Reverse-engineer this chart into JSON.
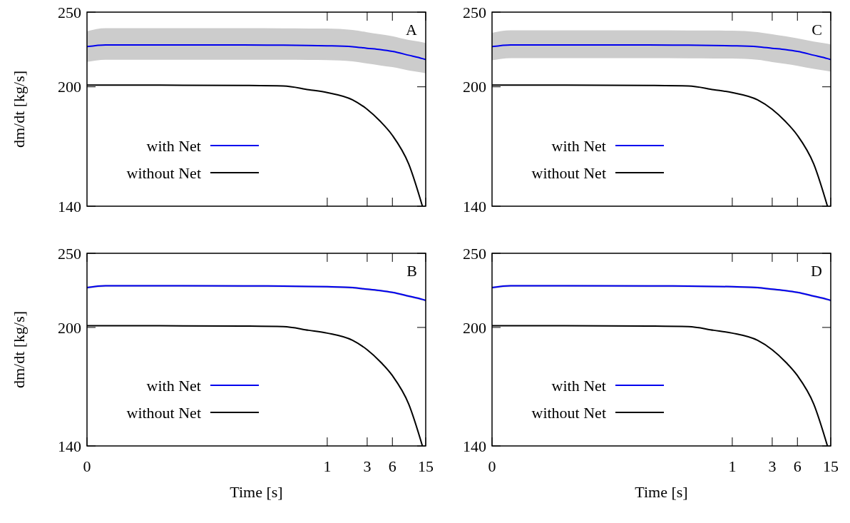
{
  "chart_data": [
    {
      "type": "line",
      "annotations": [
        "A"
      ],
      "ylabel": "dm/dt [kg/s]",
      "log": "xy",
      "legend": "bottom left",
      "tick_labels": "y",
      "xlim": [
        0.00135,
        15
      ],
      "xticks": [
        1,
        3,
        6,
        15
      ],
      "ylim": [
        140,
        250
      ],
      "yticks": [
        140,
        200,
        250
      ],
      "x": [
        0.00135,
        0.00225,
        0.01,
        0.1,
        0.3,
        0.6,
        1,
        2,
        3,
        4.3,
        6,
        9.4,
        13.7,
        15
      ],
      "series": [
        {
          "name": "with Net",
          "color": "#0000ee",
          "values": [
            225.5,
            226.7,
            226.7,
            226.6,
            226.5,
            226.3,
            226.1,
            225.5,
            224.4,
            223.5,
            222.3,
            219.8,
            217.6,
            216.9
          ],
          "upper": [
            236.2,
            238.3,
            238.3,
            238.3,
            238.2,
            238.1,
            238,
            237,
            235.4,
            234,
            232.6,
            230,
            228.5,
            228
          ],
          "lower": [
            215.5,
            216.9,
            216.9,
            216.9,
            216.8,
            216.7,
            216.6,
            215.8,
            214.4,
            213.2,
            212.1,
            210,
            208.7,
            208.3
          ]
        },
        {
          "name": "without Net",
          "color": "#000000",
          "values": [
            201,
            201,
            201,
            200.8,
            200.5,
            198.3,
            196.6,
            192.4,
            187,
            180.4,
            173,
            158.8,
            140,
            null
          ]
        }
      ]
    },
    {
      "type": "line",
      "annotations": [
        "C"
      ],
      "log": "xy",
      "legend": "bottom left",
      "tick_labels": "y",
      "xlim": [
        0.00135,
        15
      ],
      "xticks": [
        1,
        3,
        6,
        15
      ],
      "ylim": [
        140,
        250
      ],
      "yticks": [
        140,
        200,
        250
      ],
      "x": [
        0.00135,
        0.00225,
        0.01,
        0.1,
        0.3,
        0.6,
        1,
        2,
        3,
        4.3,
        6,
        9.4,
        13.7,
        15
      ],
      "series": [
        {
          "name": "with Net",
          "color": "#0000ee",
          "values": [
            225.5,
            226.7,
            226.7,
            226.6,
            226.5,
            226.3,
            226.1,
            225.5,
            224.4,
            223.5,
            222.3,
            219.8,
            217.6,
            216.9
          ],
          "upper": [
            235,
            236.8,
            236.8,
            236.8,
            236.7,
            236.6,
            236.5,
            235.5,
            234,
            232.6,
            231.2,
            229,
            227.5,
            227
          ],
          "lower": [
            216.5,
            217.9,
            217.9,
            217.9,
            217.8,
            217.7,
            217.6,
            216.8,
            215.4,
            214.2,
            213,
            211,
            209.7,
            209.3
          ]
        },
        {
          "name": "without Net",
          "color": "#000000",
          "values": [
            201,
            201,
            201,
            200.8,
            200.5,
            198.3,
            196.6,
            192.4,
            187,
            180.4,
            173,
            158.8,
            140,
            null
          ]
        }
      ]
    },
    {
      "type": "line",
      "annotations": [
        "B"
      ],
      "xlabel": "Time [s]",
      "ylabel": "dm/dt [kg/s]",
      "log": "xy",
      "legend": "bottom left",
      "xlim": [
        0.00135,
        15
      ],
      "xticks": [
        {
          "value": 0.00135,
          "label": "0"
        },
        1,
        3,
        6,
        15
      ],
      "ylim": [
        140,
        250
      ],
      "yticks": [
        140,
        200,
        250
      ],
      "x": [
        0.00135,
        0.00225,
        0.01,
        0.1,
        0.3,
        0.6,
        1,
        2,
        3,
        4.3,
        6,
        9.4,
        13.7,
        15
      ],
      "series": [
        {
          "name": "with Net",
          "color": "#0000ee",
          "values": [
            225.5,
            226.7,
            226.7,
            226.6,
            226.5,
            226.3,
            226.1,
            225.5,
            224.4,
            223.5,
            222.3,
            219.8,
            217.6,
            216.9
          ],
          "upper": [
            226.1,
            227.3,
            227.3,
            227.2,
            227.1,
            226.9,
            226.7,
            226.1,
            225,
            224.1,
            222.9,
            220.4,
            218.2,
            217.5
          ],
          "lower": [
            224.7,
            225.9,
            225.9,
            225.8,
            225.7,
            225.5,
            225.3,
            224.7,
            223.6,
            222.7,
            221.5,
            219,
            216.8,
            216.1
          ]
        },
        {
          "name": "without Net",
          "color": "#000000",
          "values": [
            201,
            201,
            201,
            200.8,
            200.5,
            198.3,
            196.6,
            192.4,
            187,
            180.4,
            173,
            158.8,
            140,
            null
          ]
        }
      ]
    },
    {
      "type": "line",
      "annotations": [
        "D"
      ],
      "xlabel": "Time [s]",
      "log": "xy",
      "legend": "bottom left",
      "xlim": [
        0.00135,
        15
      ],
      "xticks": [
        {
          "value": 0.00135,
          "label": "0"
        },
        1,
        3,
        6,
        15
      ],
      "ylim": [
        140,
        250
      ],
      "yticks": [
        140,
        200,
        250
      ],
      "x": [
        0.00135,
        0.00225,
        0.01,
        0.1,
        0.3,
        0.6,
        1,
        2,
        3,
        4.3,
        6,
        9.4,
        13.7,
        15
      ],
      "series": [
        {
          "name": "with Net",
          "color": "#0000ee",
          "values": [
            225.5,
            226.7,
            226.7,
            226.6,
            226.5,
            226.3,
            226.1,
            225.5,
            224.4,
            223.5,
            222.3,
            219.8,
            217.6,
            216.9
          ],
          "upper": [
            226.1,
            227.3,
            227.3,
            227.2,
            227.1,
            226.9,
            226.7,
            226.1,
            225,
            224.1,
            222.9,
            220.4,
            218.2,
            217.5
          ],
          "lower": [
            224.7,
            225.9,
            225.9,
            225.8,
            225.7,
            225.5,
            225.3,
            224.7,
            223.6,
            222.7,
            221.5,
            219,
            216.8,
            216.1
          ]
        },
        {
          "name": "without Net",
          "color": "#000000",
          "values": [
            201,
            201,
            201,
            200.8,
            200.5,
            198.3,
            196.6,
            192.4,
            187,
            180.4,
            173,
            158.8,
            140,
            null
          ]
        }
      ]
    }
  ]
}
